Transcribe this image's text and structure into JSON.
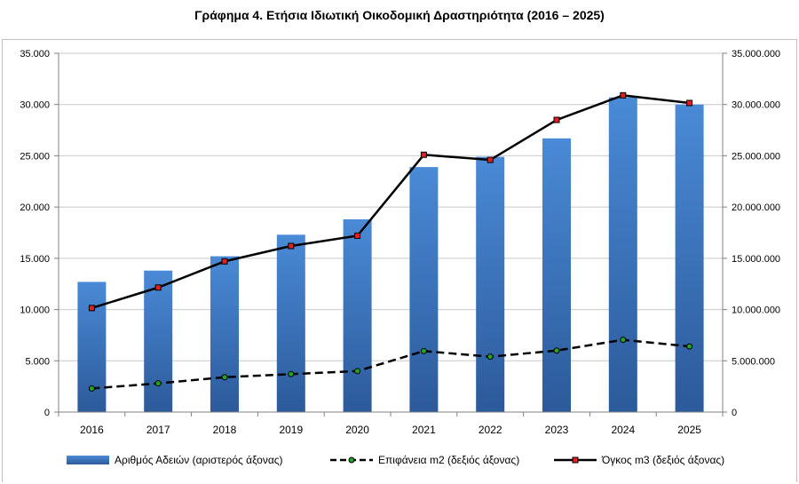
{
  "chart_data": {
    "type": "bar",
    "title": "Γράφημα 4. Ετήσια Ιδιωτική Οικοδομική Δραστηριότητα (2016 – 2025)",
    "categories": [
      "2016",
      "2017",
      "2018",
      "2019",
      "2020",
      "2021",
      "2022",
      "2023",
      "2024",
      "2025"
    ],
    "y_left": {
      "range": [
        0,
        35000
      ],
      "ticks": [
        "0",
        "5.000",
        "10.000",
        "15.000",
        "20.000",
        "25.000",
        "30.000",
        "35.000"
      ]
    },
    "y_right": {
      "range": [
        0,
        35000000
      ],
      "ticks": [
        "0",
        "5.000.000",
        "10.000.000",
        "15.000.000",
        "20.000.000",
        "25.000.000",
        "30.000.000",
        "35.000.000"
      ]
    },
    "grid": true,
    "legend_position": "bottom",
    "series": [
      {
        "name": "Αριθμός Αδειών (αριστερός άξονας)",
        "type": "bar",
        "axis": "left",
        "color": "#3c79c8",
        "values": [
          12700,
          13800,
          15200,
          17300,
          18800,
          23900,
          24900,
          26700,
          30700,
          30000
        ]
      },
      {
        "name": "Επιφάνεια m2 (δεξιός άξονας)",
        "type": "line",
        "axis": "right",
        "line_style": "dashed",
        "color": "#000000",
        "marker_color": "#26a326",
        "values": [
          2300000,
          2800000,
          3400000,
          3700000,
          4000000,
          5950000,
          5400000,
          6000000,
          7050000,
          6400000
        ]
      },
      {
        "name": "Όγκος m3 (δεξιός άξονας)",
        "type": "line",
        "axis": "right",
        "line_style": "solid",
        "color": "#000000",
        "marker_color": "#e02020",
        "values": [
          10150000,
          12150000,
          14700000,
          16200000,
          17200000,
          25100000,
          24600000,
          28500000,
          30900000,
          30150000
        ]
      }
    ]
  }
}
